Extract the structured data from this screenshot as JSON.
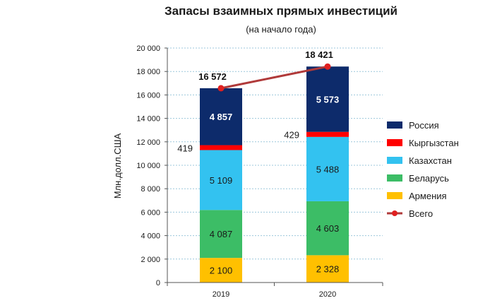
{
  "chart_data": {
    "type": "bar",
    "stacked": true,
    "title": "Запасы взаимных прямых инвестиций",
    "subtitle": "(на начало года)",
    "ylabel": "Млн.долл.США",
    "xlabel": "",
    "ylim": [
      0,
      20000
    ],
    "yticks": [
      0,
      2000,
      4000,
      6000,
      8000,
      10000,
      12000,
      14000,
      16000,
      18000,
      20000
    ],
    "ytick_labels": [
      "0",
      "2 000",
      "4 000",
      "6 000",
      "8 000",
      "10 000",
      "12 000",
      "14 000",
      "16 000",
      "18 000",
      "20 000"
    ],
    "grid": true,
    "legend": "right",
    "categories": [
      "2019",
      "2020"
    ],
    "series": [
      {
        "name": "Армения",
        "values": [
          2100,
          2328
        ],
        "labels": [
          "2 100",
          "2 328"
        ],
        "color": "#FFC000",
        "label_color": "#1a1a1a"
      },
      {
        "name": "Беларусь",
        "values": [
          4087,
          4603
        ],
        "labels": [
          "4 087",
          "4 603"
        ],
        "color": "#3CBD66",
        "label_color": "#1a1a1a"
      },
      {
        "name": "Казахстан",
        "values": [
          5109,
          5488
        ],
        "labels": [
          "5 109",
          "5 488"
        ],
        "color": "#33C2F0",
        "label_color": "#1a1a1a"
      },
      {
        "name": "Кыргызстан",
        "values": [
          419,
          429
        ],
        "labels": [
          "419",
          "429"
        ],
        "color": "#FF0000",
        "label_color": "#1a1a1a"
      },
      {
        "name": "Россия",
        "values": [
          4857,
          5573
        ],
        "labels": [
          "4 857",
          "5 573"
        ],
        "color": "#0D2B6B",
        "label_color": "#ffffff"
      }
    ],
    "total": {
      "name": "Всего",
      "values": [
        16572,
        18421
      ],
      "labels": [
        "16 572",
        "18 421"
      ],
      "line_color": "#B03A3A",
      "marker_color": "#E02020"
    }
  }
}
